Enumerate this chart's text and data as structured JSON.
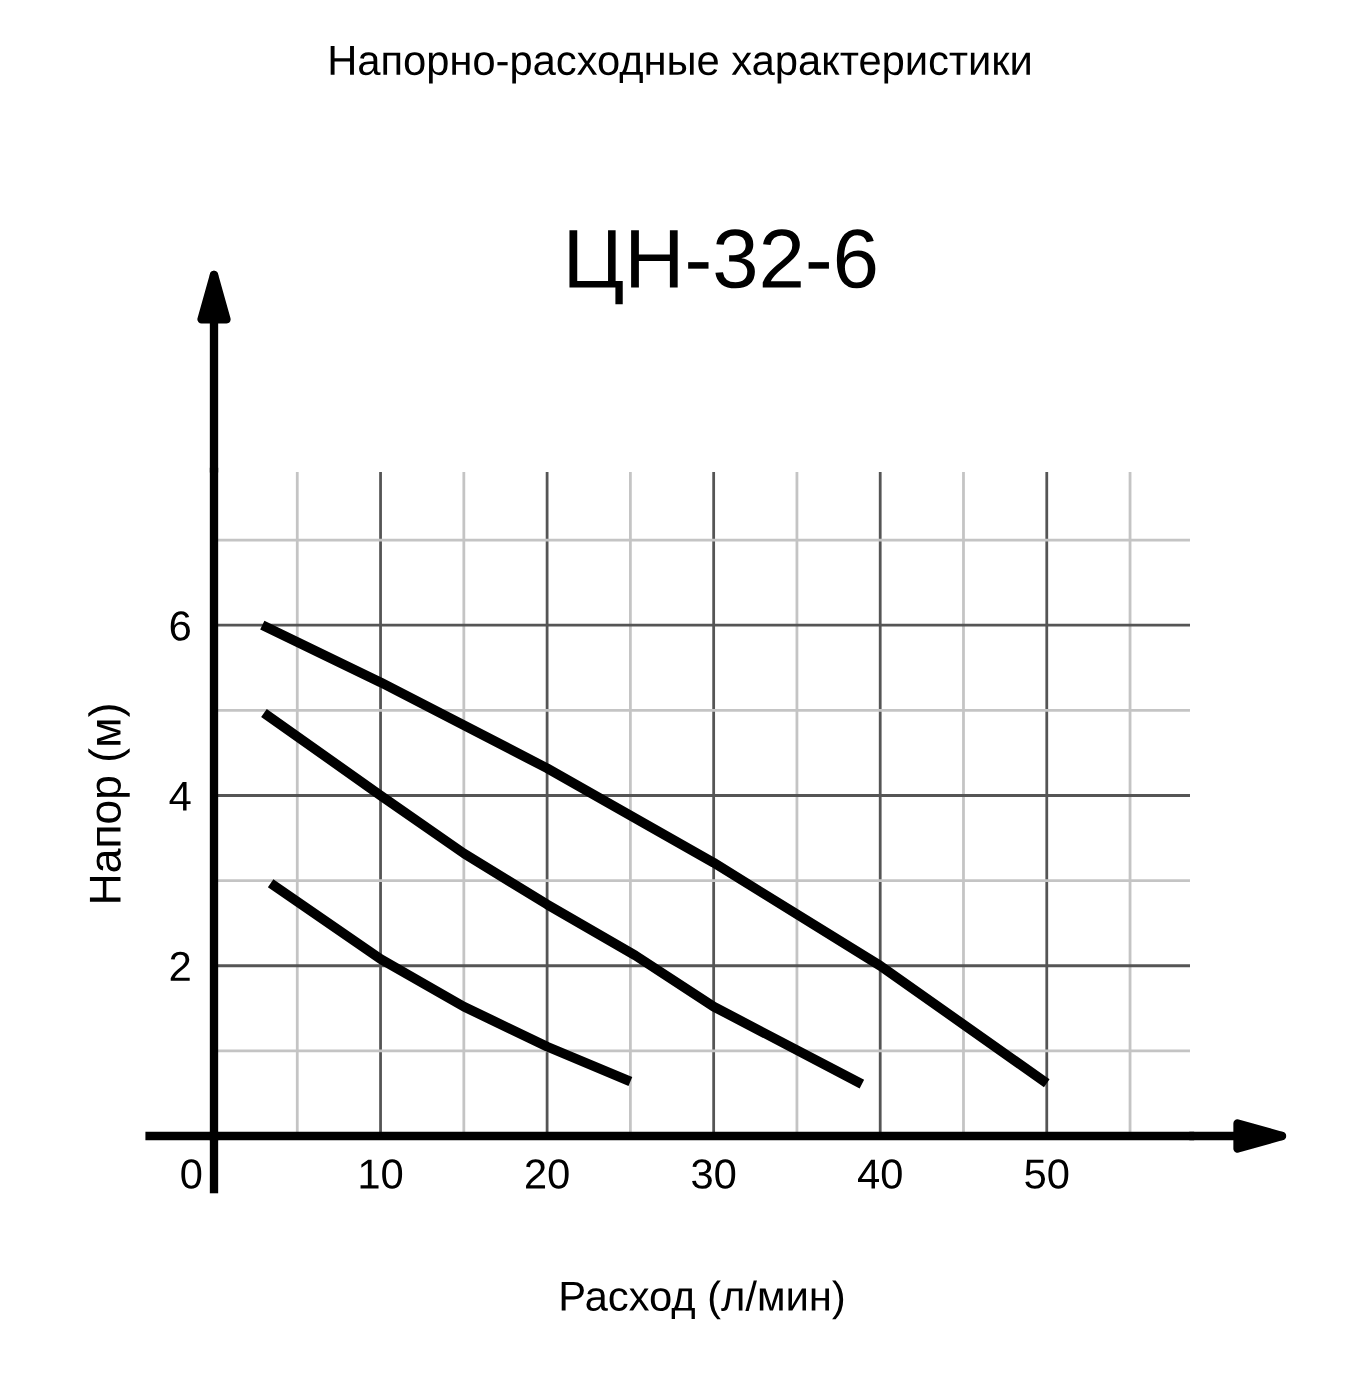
{
  "chart_data": {
    "type": "line",
    "title": "Напорно-расходные характеристики",
    "subtitle": "ЦН-32-6",
    "xlabel": "Расход (л/мин)",
    "ylabel": "Напор (м)",
    "xlim": [
      0,
      58.6
    ],
    "ylim": [
      0,
      7.8
    ],
    "xticks": [
      0,
      10,
      20,
      30,
      40,
      50
    ],
    "yticks": [
      2,
      4,
      6
    ],
    "grid": true,
    "marker": "none",
    "line_style": "solid",
    "series": [
      {
        "color": "#000000",
        "x": [
          2.9,
          10,
          20,
          30,
          40,
          45,
          50
        ],
        "values": [
          6.0,
          5.33,
          4.32,
          3.21,
          2.0,
          1.31,
          0.62
        ]
      },
      {
        "color": "#000000",
        "x": [
          3.0,
          10,
          15,
          20,
          25.3,
          30,
          38.9
        ],
        "values": [
          4.97,
          4.0,
          3.32,
          2.72,
          2.12,
          1.52,
          0.61
        ]
      },
      {
        "color": "#000000",
        "x": [
          3.4,
          10,
          15,
          20,
          25
        ],
        "values": [
          2.97,
          2.08,
          1.52,
          1.05,
          0.64
        ]
      }
    ]
  }
}
